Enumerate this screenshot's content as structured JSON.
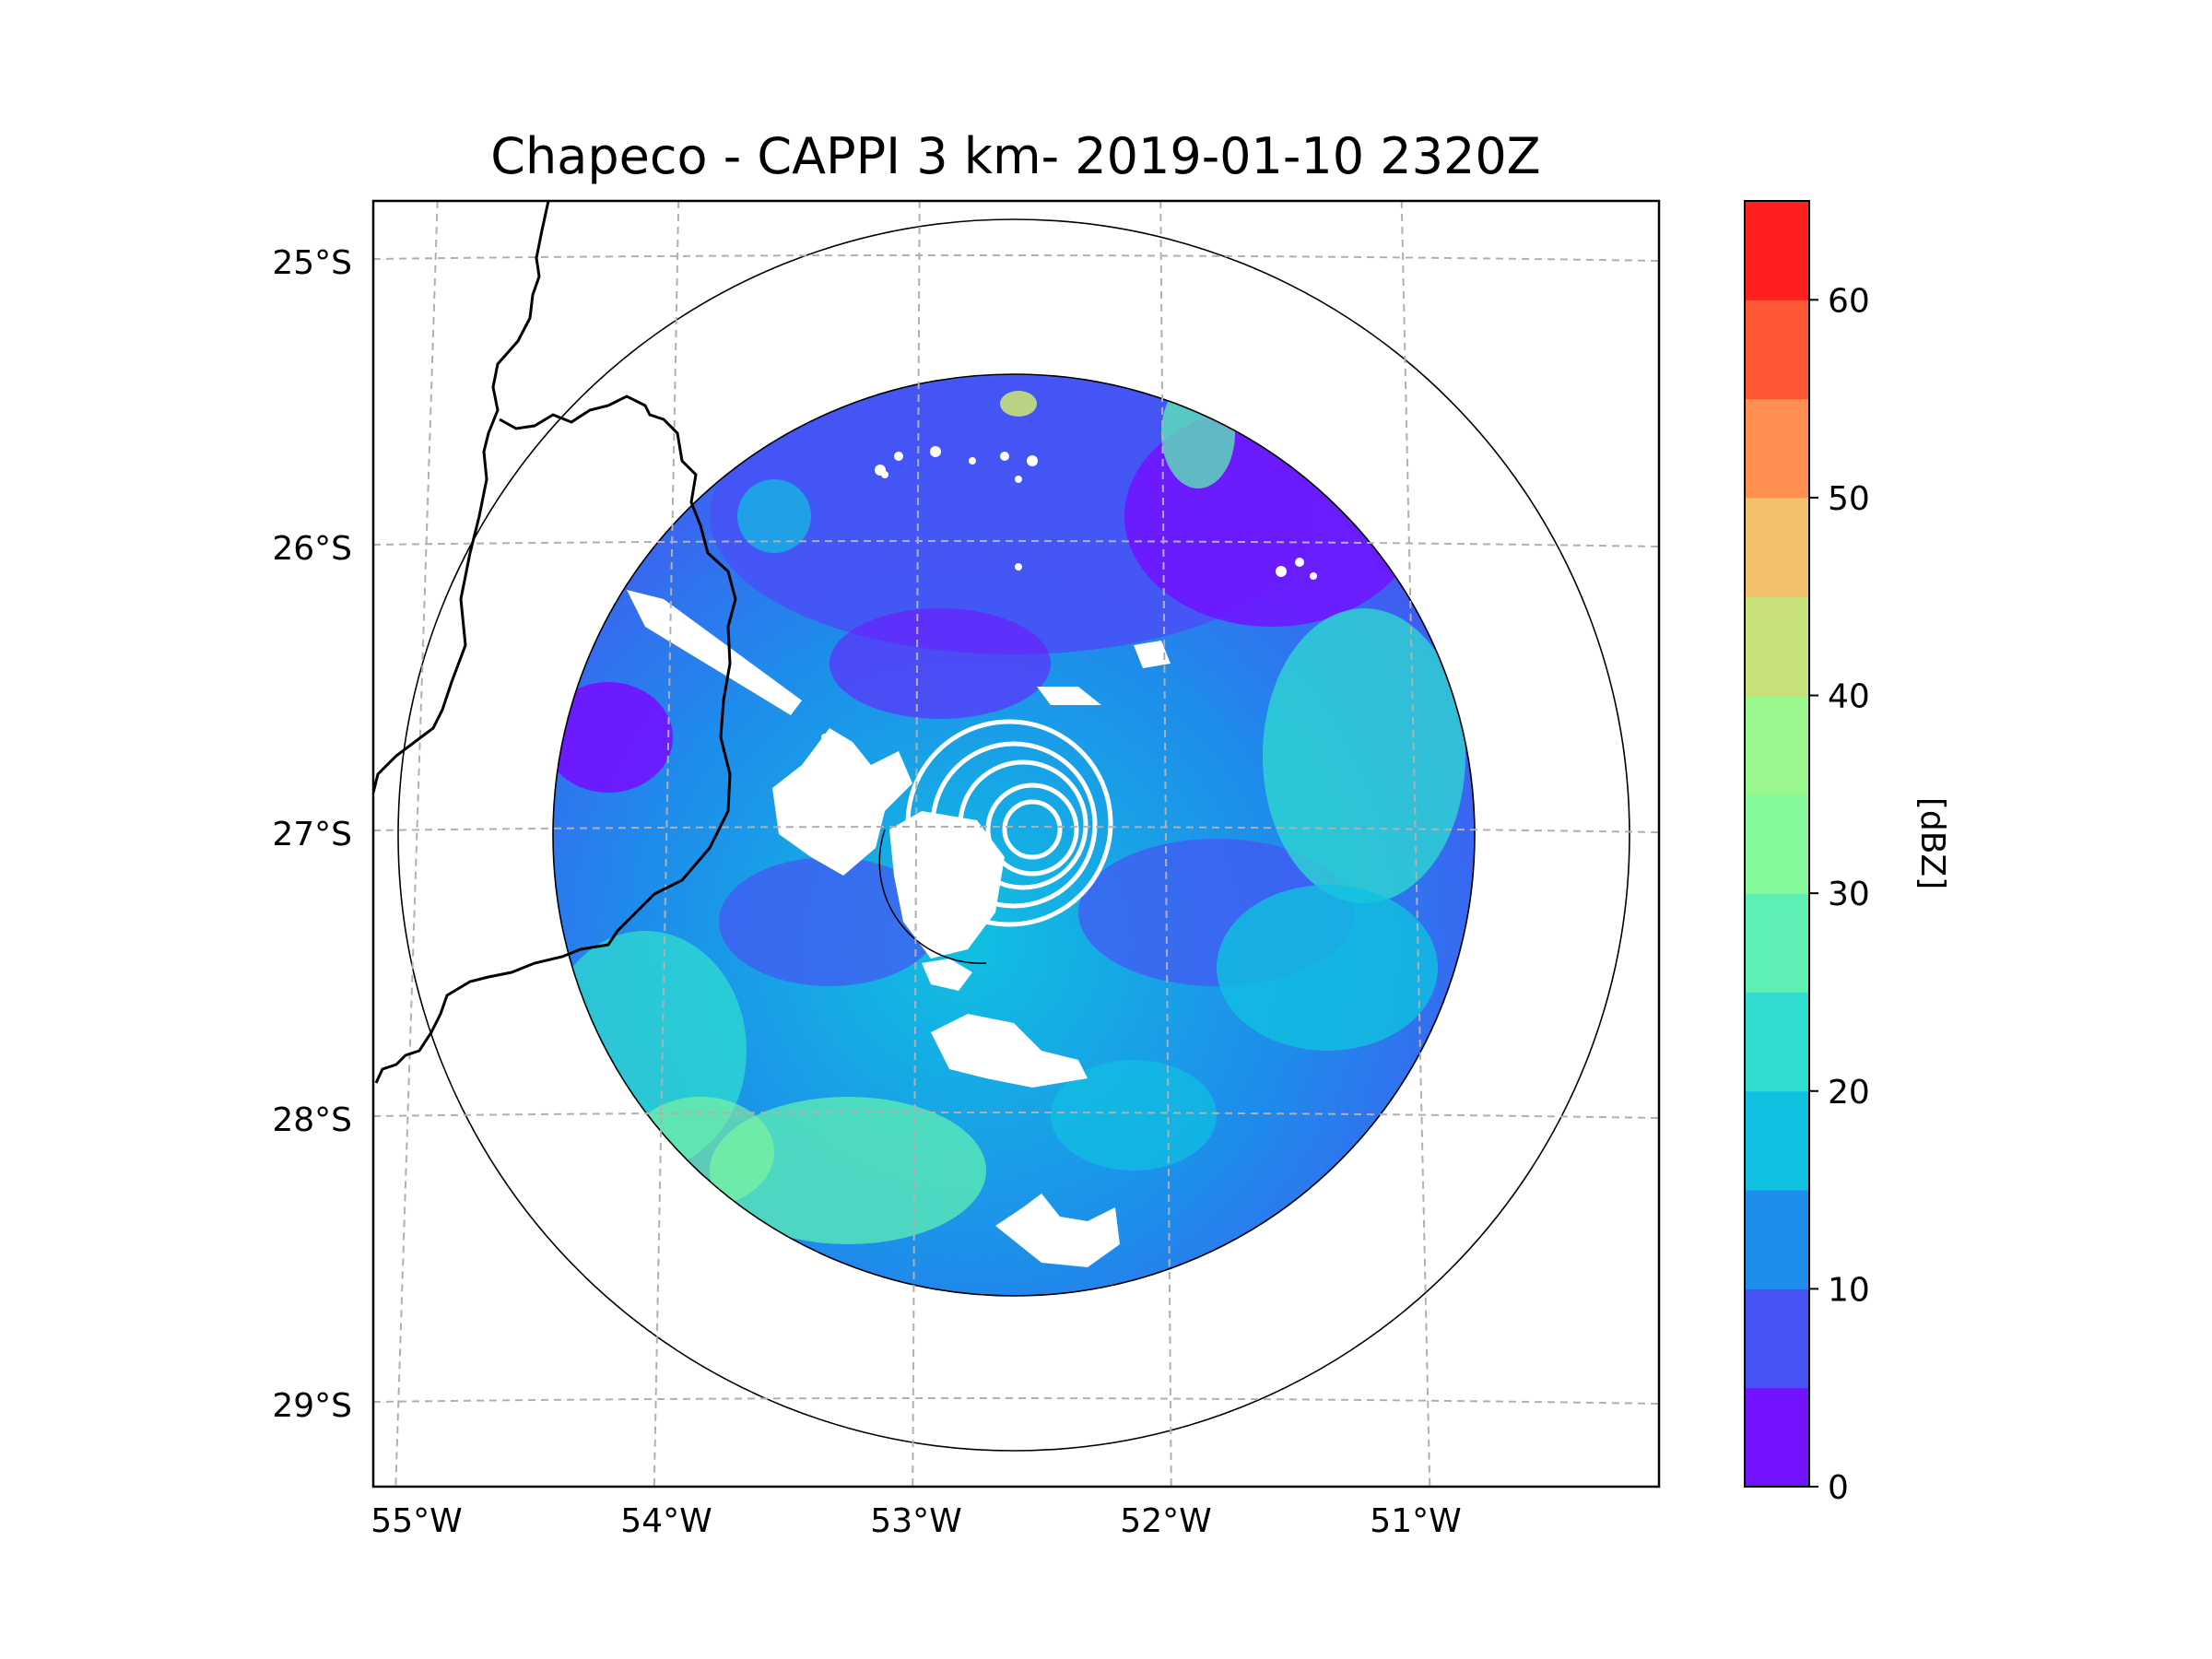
{
  "title": "Chapeco - CAPPI 3 km- 2019-01-10 2320Z",
  "map": {
    "lat_ticks": [
      {
        "value": -25,
        "label": "25°S"
      },
      {
        "value": -26,
        "label": "26°S"
      },
      {
        "value": -27,
        "label": "27°S"
      },
      {
        "value": -28,
        "label": "28°S"
      },
      {
        "value": -29,
        "label": "29°S"
      }
    ],
    "lon_ticks": [
      {
        "value": -55,
        "label": "55°W"
      },
      {
        "value": -54,
        "label": "54°W"
      },
      {
        "value": -53,
        "label": "53°W"
      },
      {
        "value": -52,
        "label": "52°W"
      },
      {
        "value": -51,
        "label": "51°W"
      }
    ],
    "radar_site": {
      "name": "Chapeco",
      "lon": -52.6,
      "lat": -27.0
    },
    "range_rings_km": [
      250,
      400
    ]
  },
  "colorbar": {
    "label": "[dBZ]",
    "min": 0,
    "max": 65,
    "step": 5,
    "tick_values": [
      0,
      10,
      20,
      30,
      40,
      50,
      60
    ],
    "tick_labels": [
      "0",
      "10",
      "20",
      "30",
      "40",
      "50",
      "60"
    ],
    "colors": [
      "#7212ff",
      "#4654f4",
      "#1e8ceb",
      "#10c0e1",
      "#2fdcd0",
      "#5defb3",
      "#86f99a",
      "#9af78e",
      "#c6e07a",
      "#f2c16b",
      "#ff9052",
      "#ff5736",
      "#ff1f1f"
    ]
  },
  "palette": {
    "low": "#7212ff",
    "mid": "#1e8ceb",
    "high": "#86f99a",
    "grid": "#b0b0b0",
    "border": "#000000"
  }
}
